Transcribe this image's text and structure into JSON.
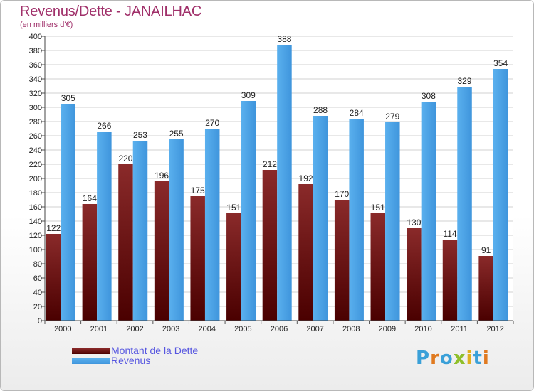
{
  "title": "Revenus/Dette - JANAILHAC",
  "subtitle": "(en milliers d'€)",
  "logo": {
    "text": "Proxiti",
    "letters": [
      "P",
      "r",
      "o",
      "x",
      "i",
      "t",
      "i"
    ],
    "letter_colors": [
      "#3aa0d8",
      "#e07a20",
      "#3aa0d8",
      "#8fbf2a",
      "#e0b020",
      "#3aa0d8",
      "#e07a20"
    ]
  },
  "chart_data": {
    "type": "bar",
    "title": "Revenus/Dette - JANAILHAC",
    "subtitle": "(en milliers d'€)",
    "categories": [
      "2000",
      "2001",
      "2002",
      "2003",
      "2004",
      "2005",
      "2006",
      "2007",
      "2008",
      "2009",
      "2010",
      "2011",
      "2012"
    ],
    "series": [
      {
        "name": "Montant de la Dette",
        "values": [
          122,
          164,
          220,
          196,
          175,
          151,
          212,
          192,
          170,
          151,
          130,
          114,
          91
        ],
        "color": "#7a1a1a"
      },
      {
        "name": "Revenus",
        "values": [
          305,
          266,
          253,
          255,
          270,
          309,
          388,
          288,
          284,
          279,
          308,
          329,
          354
        ],
        "color": "#4aa0e6"
      }
    ],
    "ylim": [
      0,
      400
    ],
    "ytick_step": 20,
    "grid": true,
    "legend": "bottom-left"
  }
}
